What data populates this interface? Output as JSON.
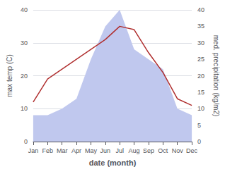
{
  "chart_data": {
    "type": "line",
    "xlabel": "date (month)",
    "ylabel": "max temp (C)",
    "y2label": "med. precipitation (kg/m2)",
    "categories": [
      "Jan",
      "Feb",
      "Mar",
      "Apr",
      "May",
      "Jun",
      "Jul",
      "Aug",
      "Sep",
      "Oct",
      "Nov",
      "Dec"
    ],
    "series": [
      {
        "type": "area",
        "axis": "y2",
        "color": "#c0c8ee",
        "values": [
          8,
          8,
          10,
          13,
          25,
          35,
          40,
          28,
          25,
          22,
          10,
          8
        ]
      },
      {
        "type": "line",
        "color": "#b03030",
        "values": [
          12,
          19,
          22,
          25,
          28,
          31,
          35,
          34,
          27,
          21,
          13,
          11
        ]
      }
    ],
    "ylim": [
      0,
      40
    ],
    "yticks": [
      0,
      10,
      20,
      30,
      40
    ],
    "y2lim": [
      0,
      40
    ],
    "y2ticks": [
      0,
      5,
      10,
      15,
      20,
      25,
      30,
      35,
      40
    ],
    "grid": true
  }
}
